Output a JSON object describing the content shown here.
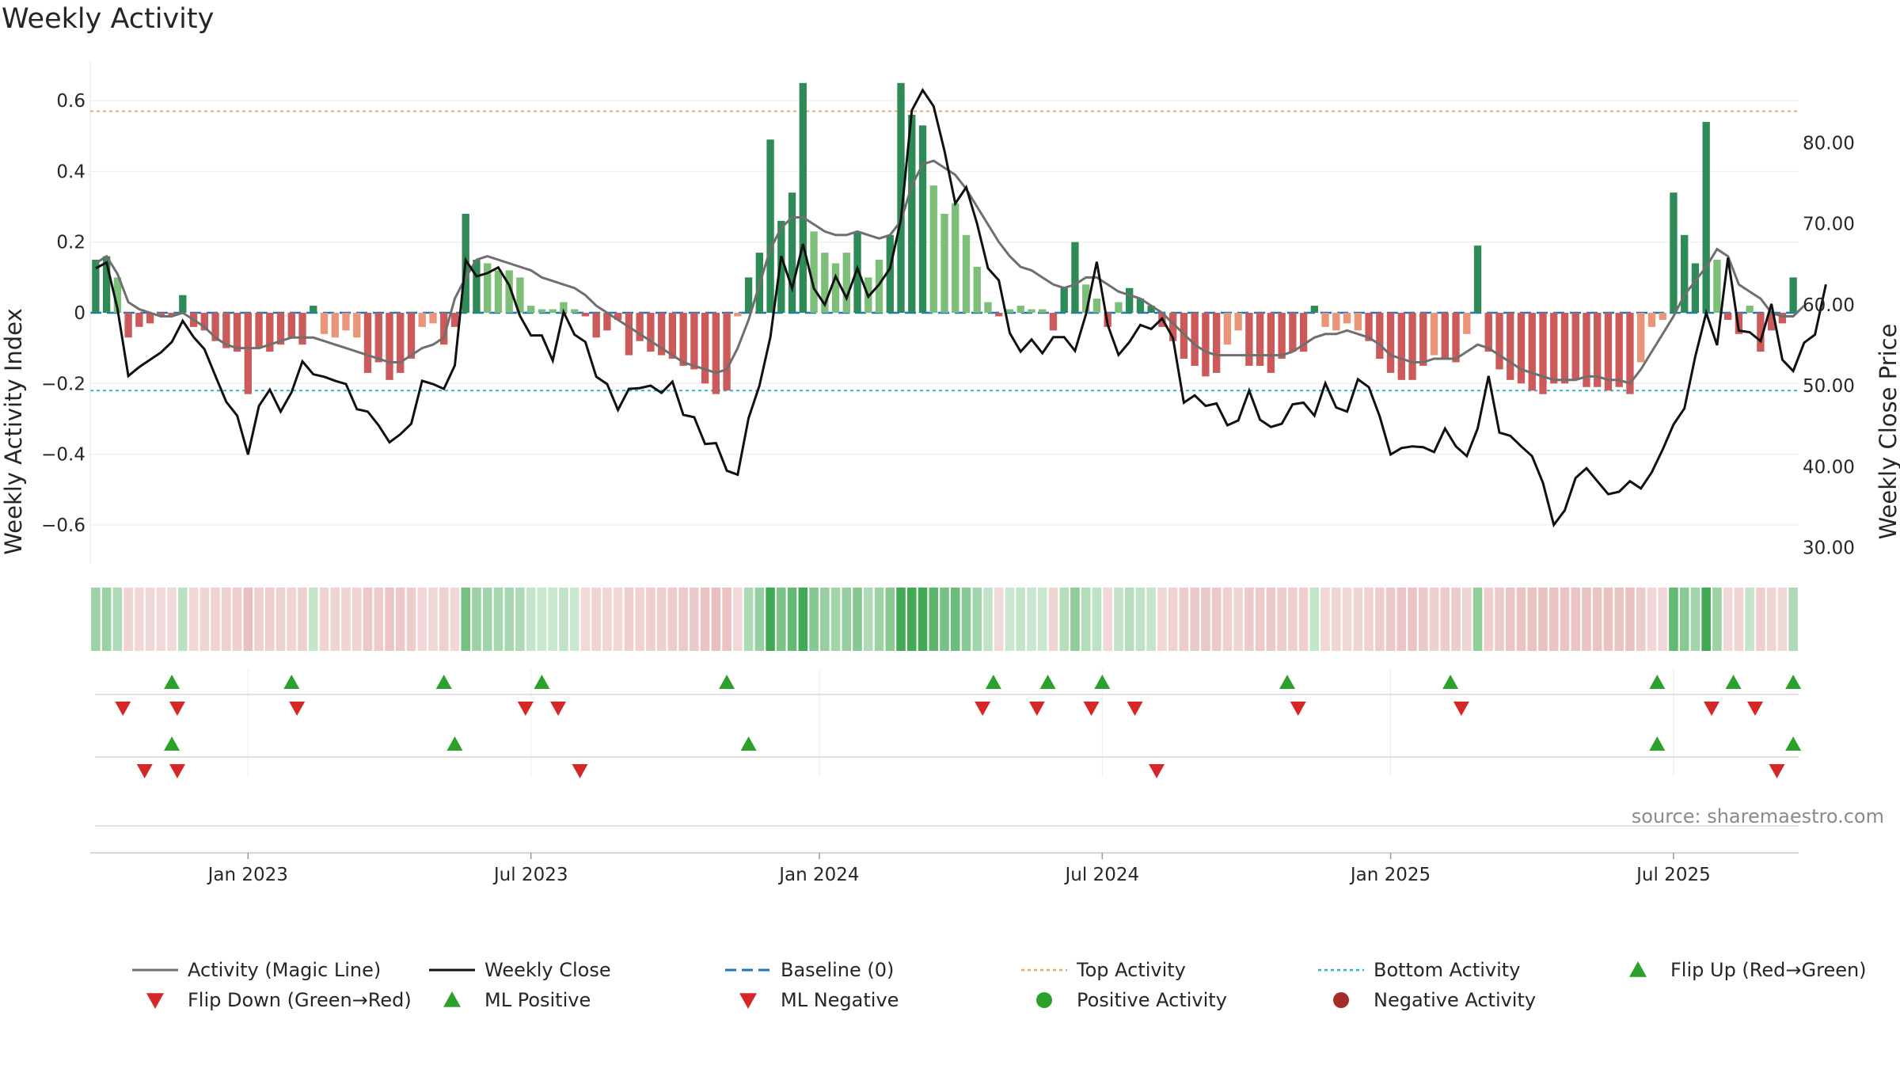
{
  "page": {
    "title": "Weekly Activity",
    "source": "source: sharemaestro.com"
  },
  "legend": [
    {
      "label": "Activity (Magic Line)",
      "kind": "line",
      "color": "#6f6f6f"
    },
    {
      "label": "Weekly Close",
      "kind": "line",
      "color": "#111111"
    },
    {
      "label": "Baseline (0)",
      "kind": "dashed",
      "color": "#1f77b4"
    },
    {
      "label": "Top Activity",
      "kind": "dotted",
      "color": "#f4a261"
    },
    {
      "label": "Bottom Activity",
      "kind": "dotted",
      "color": "#2bb3c9"
    },
    {
      "label": "Flip Up (Red→Green)",
      "kind": "tri-up",
      "color": "#2ca02c"
    },
    {
      "label": "Flip Down (Green→Red)",
      "kind": "tri-down",
      "color": "#d62728"
    },
    {
      "label": "ML Positive",
      "kind": "tri-up",
      "color": "#2ca02c"
    },
    {
      "label": "ML Negative",
      "kind": "tri-down",
      "color": "#d62728"
    },
    {
      "label": "Positive Activity",
      "kind": "dot",
      "color": "#2ca02c"
    },
    {
      "label": "Negative Activity",
      "kind": "dot",
      "color": "#a52a2a"
    }
  ],
  "chart_data": {
    "type": "bar",
    "title": "Weekly Activity",
    "ylabel": "Weekly Activity Index",
    "y2label": "Weekly Close Price",
    "ylim": [
      -0.71,
      0.71
    ],
    "y_ticks": [
      0.6,
      0.4,
      0.2,
      0,
      -0.2,
      -0.4,
      -0.6
    ],
    "y_tick_labels": [
      "0.6",
      "0.4",
      "0.2",
      "0",
      "−0.2",
      "−0.4",
      "−0.6"
    ],
    "y2lim": [
      28,
      90
    ],
    "y2_ticks": [
      80,
      70,
      60,
      50,
      40,
      30
    ],
    "y2_tick_labels": [
      "80.00",
      "70.00",
      "60.00",
      "50.00",
      "40.00",
      "30.00"
    ],
    "x_range_weeks": [
      0,
      158
    ],
    "x_ticks": [
      {
        "week": 14.5,
        "label": "Jan 2023"
      },
      {
        "week": 40.5,
        "label": "Jul 2023"
      },
      {
        "week": 67,
        "label": "Jan 2024"
      },
      {
        "week": 93,
        "label": "Jul 2024"
      },
      {
        "week": 119.5,
        "label": "Jan 2025"
      },
      {
        "week": 145.5,
        "label": "Jul 2025"
      }
    ],
    "top_activity": 0.57,
    "bottom_activity": -0.22,
    "baseline": 0,
    "series": [
      {
        "name": "Weekly Activity (bars)",
        "values": [
          0.15,
          0.16,
          0.1,
          -0.07,
          -0.04,
          -0.03,
          -0.01,
          -0.01,
          0.05,
          -0.04,
          -0.05,
          -0.08,
          -0.1,
          -0.11,
          -0.23,
          -0.1,
          -0.11,
          -0.09,
          -0.07,
          -0.09,
          0.02,
          -0.06,
          -0.07,
          -0.05,
          -0.07,
          -0.17,
          -0.14,
          -0.19,
          -0.17,
          -0.13,
          -0.04,
          -0.03,
          -0.09,
          -0.04,
          0.28,
          0.15,
          0.14,
          0.12,
          0.12,
          0.1,
          0.02,
          0.01,
          0.01,
          0.03,
          0.01,
          -0.01,
          -0.07,
          -0.05,
          -0.02,
          -0.12,
          -0.08,
          -0.11,
          -0.12,
          -0.13,
          -0.15,
          -0.16,
          -0.2,
          -0.23,
          -0.22,
          -0.01,
          0.1,
          0.17,
          0.49,
          0.26,
          0.34,
          0.65,
          0.23,
          0.17,
          0.14,
          0.17,
          0.23,
          0.1,
          0.15,
          0.22,
          0.65,
          0.56,
          0.53,
          0.36,
          0.28,
          0.31,
          0.22,
          0.13,
          0.03,
          -0.01,
          0.01,
          0.02,
          0.01,
          0.01,
          -0.05,
          0.07,
          0.2,
          0.08,
          0.04,
          -0.04,
          0.03,
          0.07,
          0.04,
          0.02,
          -0.04,
          -0.08,
          -0.13,
          -0.15,
          -0.18,
          -0.17,
          -0.09,
          -0.05,
          -0.15,
          -0.15,
          -0.17,
          -0.13,
          -0.11,
          -0.11,
          0.02,
          -0.04,
          -0.05,
          -0.03,
          -0.05,
          -0.08,
          -0.13,
          -0.17,
          -0.19,
          -0.19,
          -0.15,
          -0.12,
          -0.13,
          -0.14,
          -0.06,
          0.19,
          -0.11,
          -0.16,
          -0.19,
          -0.2,
          -0.22,
          -0.23,
          -0.2,
          -0.2,
          -0.19,
          -0.21,
          -0.21,
          -0.22,
          -0.21,
          -0.23,
          -0.14,
          -0.04,
          -0.02,
          0.34,
          0.22,
          0.14,
          0.54,
          0.15,
          -0.02,
          -0.06,
          0.02,
          -0.11,
          -0.05,
          -0.03,
          0.1
        ]
      },
      {
        "name": "Activity (Magic Line)",
        "values": [
          0.14,
          0.16,
          0.11,
          0.03,
          0.01,
          0.0,
          -0.01,
          -0.01,
          0.0,
          -0.02,
          -0.04,
          -0.07,
          -0.09,
          -0.1,
          -0.1,
          -0.1,
          -0.09,
          -0.08,
          -0.07,
          -0.07,
          -0.07,
          -0.08,
          -0.09,
          -0.1,
          -0.11,
          -0.12,
          -0.13,
          -0.14,
          -0.14,
          -0.12,
          -0.1,
          -0.09,
          -0.07,
          0.04,
          0.1,
          0.15,
          0.16,
          0.15,
          0.14,
          0.13,
          0.12,
          0.1,
          0.09,
          0.08,
          0.07,
          0.05,
          0.02,
          0.0,
          -0.02,
          -0.04,
          -0.06,
          -0.08,
          -0.1,
          -0.12,
          -0.14,
          -0.15,
          -0.16,
          -0.17,
          -0.16,
          -0.1,
          -0.02,
          0.08,
          0.18,
          0.24,
          0.27,
          0.27,
          0.25,
          0.23,
          0.22,
          0.22,
          0.23,
          0.22,
          0.21,
          0.22,
          0.26,
          0.36,
          0.42,
          0.43,
          0.41,
          0.39,
          0.35,
          0.3,
          0.25,
          0.2,
          0.16,
          0.13,
          0.12,
          0.1,
          0.08,
          0.07,
          0.08,
          0.1,
          0.1,
          0.08,
          0.06,
          0.05,
          0.04,
          0.02,
          0.0,
          -0.03,
          -0.06,
          -0.09,
          -0.11,
          -0.12,
          -0.12,
          -0.12,
          -0.12,
          -0.12,
          -0.12,
          -0.12,
          -0.11,
          -0.09,
          -0.07,
          -0.06,
          -0.06,
          -0.05,
          -0.06,
          -0.07,
          -0.09,
          -0.12,
          -0.13,
          -0.14,
          -0.14,
          -0.13,
          -0.13,
          -0.13,
          -0.11,
          -0.09,
          -0.1,
          -0.12,
          -0.14,
          -0.16,
          -0.17,
          -0.18,
          -0.19,
          -0.19,
          -0.19,
          -0.18,
          -0.18,
          -0.19,
          -0.19,
          -0.2,
          -0.16,
          -0.11,
          -0.06,
          -0.01,
          0.05,
          0.09,
          0.13,
          0.18,
          0.16,
          0.08,
          0.06,
          0.04,
          0.0,
          -0.01,
          -0.01,
          0.02
        ]
      },
      {
        "name": "Weekly Close",
        "values": [
          64.5,
          65.2,
          59.5,
          51.2,
          52.3,
          53.2,
          54.1,
          55.4,
          58,
          56,
          54.5,
          51.2,
          48,
          46.3,
          41.5,
          47.5,
          49.5,
          46.8,
          49.2,
          53,
          51.4,
          51.1,
          50.6,
          50.2,
          47.1,
          46.8,
          45.1,
          43,
          44,
          45.3,
          50.6,
          50.2,
          49.6,
          52.5,
          65.5,
          63.5,
          63.9,
          64.6,
          62.4,
          58.6,
          56.2,
          56.2,
          53.1,
          59.1,
          56.3,
          55.4,
          51.1,
          50.2,
          47,
          49.6,
          49.7,
          50,
          49.1,
          50.5,
          46.4,
          46.1,
          42.8,
          42.9,
          39.5,
          39,
          46,
          50,
          56,
          66,
          62,
          67.5,
          62,
          60,
          63.5,
          60.8,
          64.5,
          61,
          62.5,
          64.5,
          70.5,
          84,
          86.5,
          84.5,
          79,
          72.5,
          74.5,
          70,
          64.5,
          63,
          56.5,
          54.2,
          55.7,
          54,
          56,
          56,
          54.3,
          58.8,
          65.3,
          57.5,
          53.8,
          55.4,
          57.5,
          57,
          58.3,
          55.9,
          47.9,
          48.8,
          47.5,
          47.8,
          45.1,
          45.7,
          49.4,
          45.8,
          44.9,
          45.3,
          47.7,
          47.9,
          46.3,
          50.3,
          47.3,
          46.8,
          50.8,
          49.8,
          46.2,
          41.5,
          42.3,
          42.5,
          42.4,
          41.8,
          44.7,
          42.5,
          41.3,
          44.7,
          51.2,
          44.2,
          43.8,
          42.5,
          41.3,
          38,
          32.8,
          34.6,
          38.6,
          39.8,
          38.2,
          36.6,
          36.9,
          38.2,
          37.3,
          39.3,
          42.1,
          45.2,
          47.2,
          53.6,
          59,
          55,
          65.8,
          56.8,
          56.6,
          55.5,
          60.1,
          53.2,
          51.8,
          55.3,
          56.3,
          62.5
        ]
      },
      {
        "name": "Flip Up (Red→Green)",
        "weeks": [
          7.5,
          18.5,
          32.5,
          41.5,
          58.5,
          83,
          88,
          93,
          110,
          125,
          144,
          151,
          156.5
        ]
      },
      {
        "name": "Flip Down (Green→Red)",
        "weeks": [
          3,
          8,
          19,
          40,
          43,
          82,
          87,
          92,
          96,
          111,
          126,
          149,
          153
        ]
      },
      {
        "name": "ML Positive",
        "weeks": [
          7.5,
          33.5,
          60.5,
          144,
          156.5
        ]
      },
      {
        "name": "ML Negative",
        "weeks": [
          5,
          8,
          45,
          98,
          155
        ]
      }
    ]
  }
}
